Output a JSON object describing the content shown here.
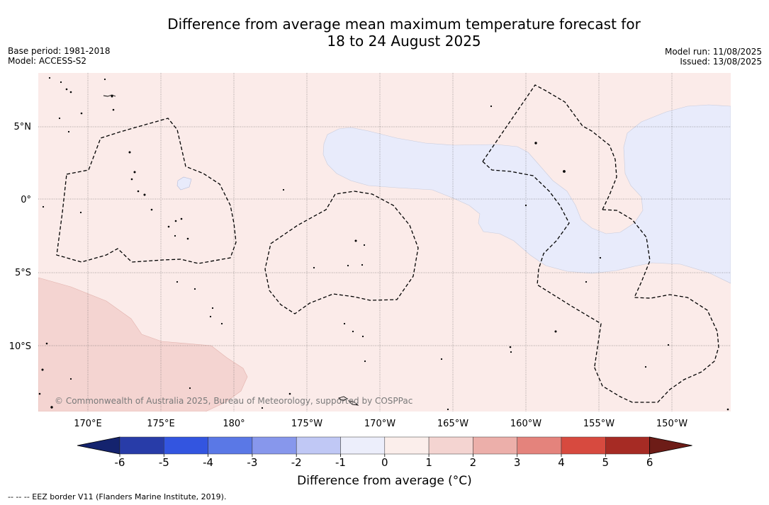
{
  "header": {
    "title_line1": "Difference from average mean maximum temperature forecast for",
    "title_line2": "18 to 24 August 2025",
    "base_period": "Base period: 1981-2018",
    "model": "Model: ACCESS-S2",
    "model_run": "Model run: 11/08/2025",
    "issued": "Issued: 13/08/2025"
  },
  "map": {
    "lat_labels": [
      "5°N",
      "0°",
      "5°S",
      "10°S"
    ],
    "lon_labels": [
      "170°E",
      "175°E",
      "180°",
      "175°W",
      "170°W",
      "165°W",
      "160°W",
      "155°W",
      "150°W"
    ],
    "copyright": "© Commonwealth of Australia 2025, Bureau of Meteorology, supported by COSPPac",
    "fill_colors": {
      "background_0_to_1": "#fbebe9",
      "cool_minus1_to_0": "#e8ebfb",
      "warm_1_to_2": "#f4d4d1"
    }
  },
  "colorbar": {
    "label": "Difference from average (°C)",
    "ticks": [
      "-6",
      "-5",
      "-4",
      "-3",
      "-2",
      "-1",
      "0",
      "1",
      "2",
      "3",
      "4",
      "5",
      "6"
    ],
    "colors": [
      "#14236e",
      "#283ca8",
      "#3355e0",
      "#5a78e6",
      "#8797ec",
      "#c0c8f5",
      "#eceefb",
      "#fbeeeb",
      "#f4d4d1",
      "#ecafaa",
      "#e4837c",
      "#d74a3f",
      "#a62b24",
      "#6d1c17"
    ]
  },
  "footnote": "--  --  -- EEZ border V11 (Flanders Marine Institute, 2019)."
}
